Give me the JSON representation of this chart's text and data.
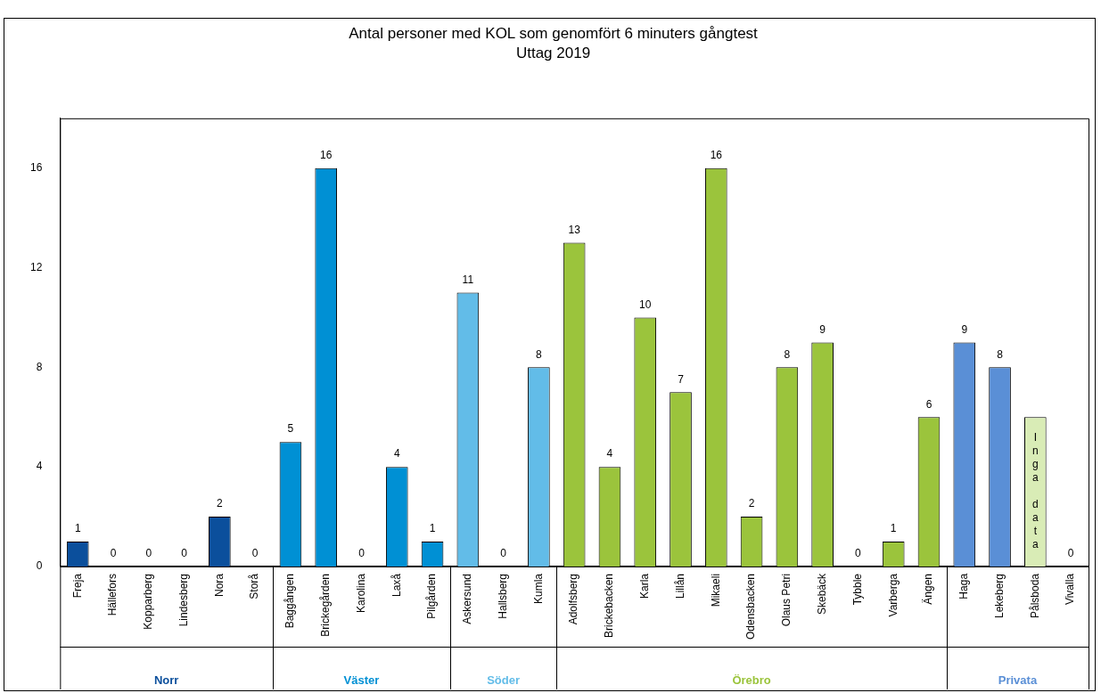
{
  "chart_data": {
    "type": "bar",
    "title": "Antal personer med KOL som genomfört 6 minuters gångtest",
    "subtitle": "Uttag 2019",
    "categories": [
      "Freja",
      "Hällefors",
      "Kopparberg",
      "Lindesberg",
      "Nora",
      "Storå",
      "Baggången",
      "Brickegården",
      "Karolina",
      "Laxå",
      "Pilgården",
      "Askersund",
      "Hallsberg",
      "Kumla",
      "Adolfsberg",
      "Brickebacken",
      "Karla",
      "Lillån",
      "Mikaeli",
      "Odensbacken",
      "Olaus Petri",
      "Skebäck",
      "Tybble",
      "Varberga",
      "Ängen",
      "Haga",
      "Lekeberg",
      "Pålsboda",
      "Vivalla"
    ],
    "series": [
      {
        "name": "Norr",
        "color": "#0b4f9c",
        "values": [
          1,
          0,
          0,
          0,
          2,
          0,
          null,
          null,
          null,
          null,
          null,
          null,
          null,
          null,
          null,
          null,
          null,
          null,
          null,
          null,
          null,
          null,
          null,
          null,
          null,
          null,
          null,
          null,
          null
        ],
        "value_labels": [
          "1",
          "0",
          "0",
          "0",
          "2",
          "0",
          null,
          null,
          null,
          null,
          null,
          null,
          null,
          null,
          null,
          null,
          null,
          null,
          null,
          null,
          null,
          null,
          null,
          null,
          null,
          null,
          null,
          null,
          null
        ]
      },
      {
        "name": "Väster",
        "color": "#0090d4",
        "values": [
          null,
          null,
          null,
          null,
          null,
          null,
          5,
          16,
          0,
          4,
          1,
          null,
          null,
          null,
          null,
          null,
          null,
          null,
          null,
          null,
          null,
          null,
          null,
          null,
          null,
          null,
          null,
          null,
          null
        ],
        "value_labels": [
          null,
          null,
          null,
          null,
          null,
          null,
          "5",
          "16",
          "0",
          "4",
          "1",
          null,
          null,
          null,
          null,
          null,
          null,
          null,
          null,
          null,
          null,
          null,
          null,
          null,
          null,
          null,
          null,
          null,
          null
        ]
      },
      {
        "name": "Söder",
        "color": "#62bce8",
        "values": [
          null,
          null,
          null,
          null,
          null,
          null,
          null,
          null,
          null,
          null,
          null,
          11,
          0,
          8,
          null,
          null,
          null,
          null,
          null,
          null,
          null,
          null,
          null,
          null,
          null,
          null,
          null,
          null,
          null
        ],
        "value_labels": [
          null,
          null,
          null,
          null,
          null,
          null,
          null,
          null,
          null,
          null,
          null,
          "11",
          "0",
          "8",
          null,
          null,
          null,
          null,
          null,
          null,
          null,
          null,
          null,
          null,
          null,
          null,
          null,
          null,
          null
        ]
      },
      {
        "name": "Örebro",
        "color": "#9bc43c",
        "values": [
          null,
          null,
          null,
          null,
          null,
          null,
          null,
          null,
          null,
          null,
          null,
          null,
          null,
          null,
          13,
          4,
          10,
          7,
          16,
          2,
          8,
          9,
          0,
          1,
          6,
          null,
          null,
          null,
          null
        ],
        "value_labels": [
          null,
          null,
          null,
          null,
          null,
          null,
          null,
          null,
          null,
          null,
          null,
          null,
          null,
          null,
          "13",
          "4",
          "10",
          "7",
          "16",
          "2",
          "8",
          "9",
          "0",
          "1",
          "6",
          null,
          null,
          null,
          null
        ]
      },
      {
        "name": "Privata",
        "color": "#5a8fd6",
        "colors": [
          null,
          null,
          null,
          null,
          null,
          null,
          null,
          null,
          null,
          null,
          null,
          null,
          null,
          null,
          null,
          null,
          null,
          null,
          null,
          null,
          null,
          null,
          null,
          null,
          null,
          "#5a8fd6",
          "#5a8fd6",
          "#d9ecb6",
          "#5a8fd6"
        ],
        "values": [
          null,
          null,
          null,
          null,
          null,
          null,
          null,
          null,
          null,
          null,
          null,
          null,
          null,
          null,
          null,
          null,
          null,
          null,
          null,
          null,
          null,
          null,
          null,
          null,
          null,
          9,
          8,
          6,
          0
        ],
        "value_labels": [
          null,
          null,
          null,
          null,
          null,
          null,
          null,
          null,
          null,
          null,
          null,
          null,
          null,
          null,
          null,
          null,
          null,
          null,
          null,
          null,
          null,
          null,
          null,
          null,
          null,
          "9",
          "8",
          "Inga data",
          "0"
        ]
      }
    ],
    "ylim": [
      0,
      18
    ],
    "yticks": [
      0,
      4,
      8,
      12,
      16
    ],
    "grid": false,
    "legend": false
  }
}
